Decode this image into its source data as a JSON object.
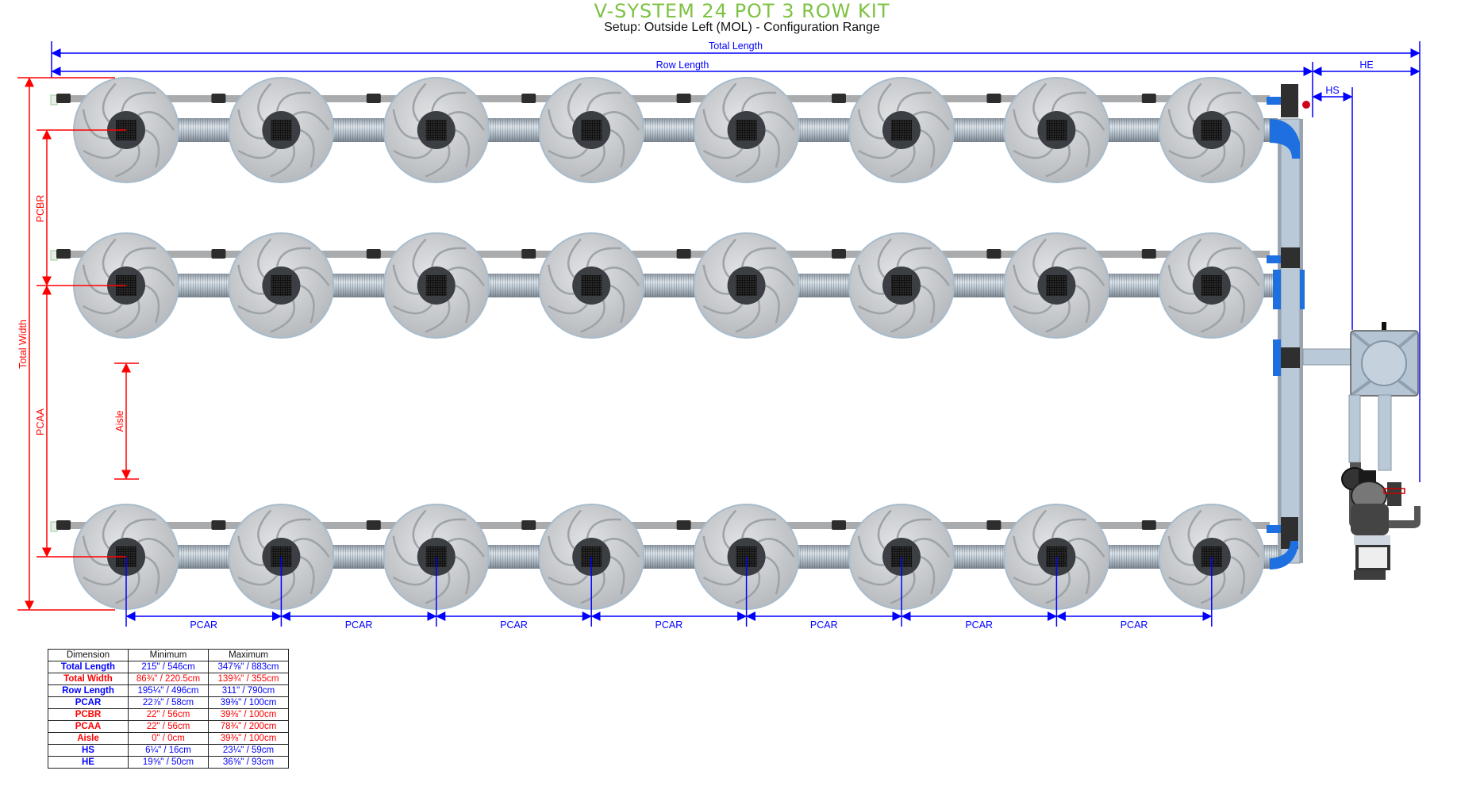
{
  "header": {
    "title": "V-SYSTEM 24 POT 3 ROW KIT",
    "subtitle": "Setup: Outside Left (MOL) - Configuration Range"
  },
  "dimension_labels": {
    "total_length": "Total Length",
    "row_length": "Row Length",
    "he": "HE",
    "hs": "HS",
    "total_width": "Total Width",
    "pcbr": "PCBR",
    "pcaa": "PCAA",
    "aisle": "Aisle",
    "pcar": [
      "PCAR",
      "PCAR",
      "PCAR",
      "PCAR",
      "PCAR",
      "PCAR",
      "PCAR"
    ]
  },
  "layout_info": {
    "rows": 3,
    "pots_per_row": 8
  },
  "colors": {
    "title": "#7dc242",
    "blue_dim": "#0000ff",
    "red_dim": "#ff0000",
    "pot": "#c8cacd",
    "pipe": "#b7c7d6",
    "elbow": "#1e6fe0"
  },
  "table": {
    "headers": [
      "Dimension",
      "Minimum",
      "Maximum"
    ],
    "rows": [
      {
        "dimension": "Total Length",
        "min": "215\" / 546cm",
        "max": "347⅝\" / 883cm",
        "color": "#0000ff"
      },
      {
        "dimension": "Total Width",
        "min": "86¾\" / 220.5cm",
        "max": "139¾\" / 355cm",
        "color": "#ff0000"
      },
      {
        "dimension": "Row Length",
        "min": "195¼\" / 496cm",
        "max": "311\" / 790cm",
        "color": "#0000ff"
      },
      {
        "dimension": "PCAR",
        "min": "22⅞\" / 58cm",
        "max": "39⅜\" / 100cm",
        "color": "#0000ff"
      },
      {
        "dimension": "PCBR",
        "min": "22\" / 56cm",
        "max": "39⅜\" / 100cm",
        "color": "#ff0000"
      },
      {
        "dimension": "PCAA",
        "min": "22\" / 56cm",
        "max": "78¾\" / 200cm",
        "color": "#ff0000"
      },
      {
        "dimension": "Aisle",
        "min": "0\" / 0cm",
        "max": "39⅜\" / 100cm",
        "color": "#ff0000"
      },
      {
        "dimension": "HS",
        "min": "6¼\" / 16cm",
        "max": "23¼\" / 59cm",
        "color": "#0000ff"
      },
      {
        "dimension": "HE",
        "min": "19⅝\" / 50cm",
        "max": "36⅝\" / 93cm",
        "color": "#0000ff"
      }
    ]
  }
}
